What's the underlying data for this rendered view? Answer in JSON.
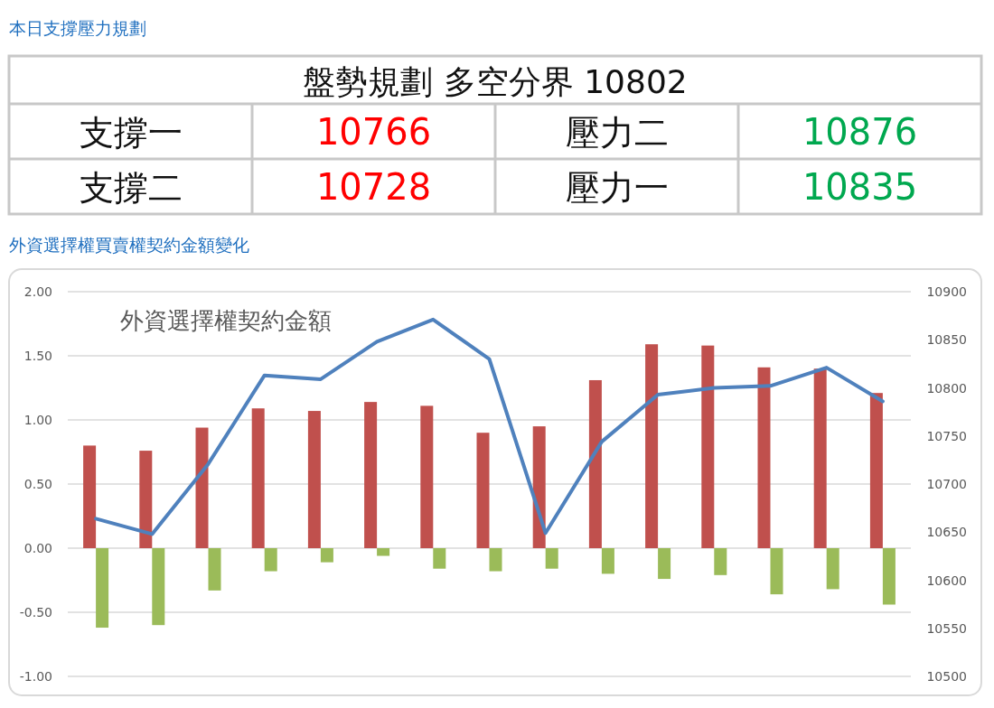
{
  "chart_data": [
    {
      "type": "other",
      "title": "本日支撐壓力規劃",
      "annotations": [
        "盤勢規劃 多空分界 10802",
        "支撐一",
        "10766",
        "壓力二",
        "10876",
        "支撐二",
        "10728",
        "壓力一",
        "10835"
      ]
    },
    {
      "type": "bar",
      "title": "外資選擇權買賣權契約金額變化",
      "subtitle": "外資選擇權契約金額",
      "categories": [
        null,
        null,
        null,
        null,
        null,
        null,
        null,
        null,
        null,
        null,
        null,
        null,
        null,
        null,
        null
      ],
      "series": [
        {
          "color": "#c0504d",
          "values": [
            0.8,
            0.76,
            0.94,
            1.09,
            1.07,
            1.14,
            1.11,
            0.9,
            0.95,
            1.31,
            1.59,
            1.58,
            1.41,
            1.4,
            1.21
          ]
        },
        {
          "color": "#9bbb59",
          "values": [
            -0.62,
            -0.6,
            -0.33,
            -0.18,
            -0.11,
            -0.06,
            -0.16,
            -0.18,
            -0.16,
            -0.2,
            -0.24,
            -0.21,
            -0.36,
            -0.32,
            -0.44
          ]
        },
        {
          "type": "line",
          "axis": "y2",
          "color": "#4f81bd",
          "values": [
            10664,
            10648,
            10721,
            10813,
            10809,
            10848,
            10871,
            10830,
            10649,
            10744,
            10793,
            10800,
            10802,
            10821,
            10786
          ]
        }
      ],
      "ylim": [
        -1,
        2
      ],
      "yticks": [
        {
          "value": -1,
          "label": "-1.00"
        },
        {
          "value": -0.5,
          "label": "-0.50"
        },
        {
          "value": 0,
          "label": "0.00"
        },
        {
          "value": 0.5,
          "label": "0.50"
        },
        {
          "value": 1,
          "label": "1.00"
        },
        {
          "value": 1.5,
          "label": "1.50"
        },
        {
          "value": 2,
          "label": "2.00"
        }
      ],
      "y2lim": [
        10500,
        10900
      ],
      "y2ticks": [
        10500,
        10550,
        10600,
        10650,
        10700,
        10750,
        10800,
        10850,
        10900
      ],
      "grid": "y"
    }
  ]
}
